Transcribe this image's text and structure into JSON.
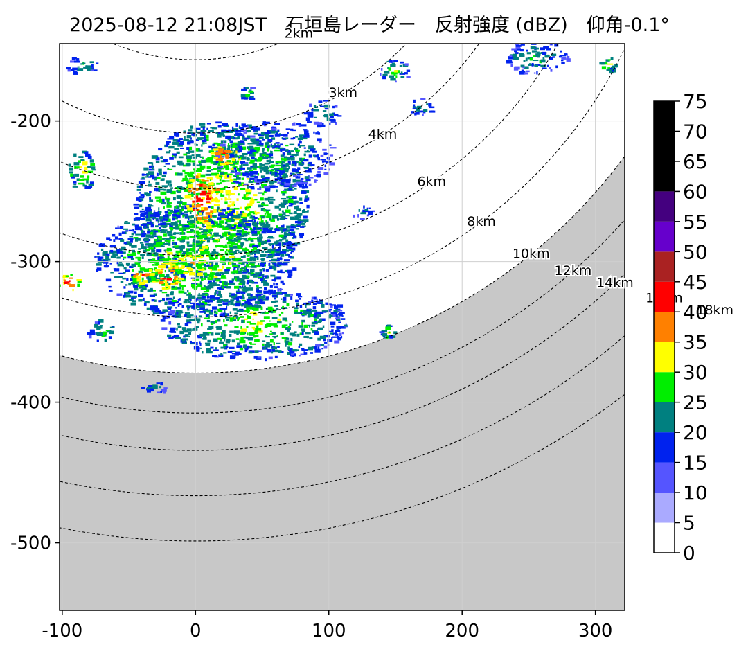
{
  "title": "2025-08-12 21:08JST　石垣島レーダー　反射強度 (dBZ)　仰角-0.1°",
  "chart_data": {
    "type": "heatmap",
    "title": "2025-08-12 21:08JST　石垣島レーダー　反射強度 (dBZ)　仰角-0.1°",
    "x_ticks": [
      -100,
      0,
      100,
      200,
      300
    ],
    "y_ticks": [
      -200,
      -300,
      -400,
      -500
    ],
    "xlim": [
      -102,
      322
    ],
    "ylim": [
      -145,
      -548
    ],
    "grid": true,
    "range_rings": [
      {
        "label": "2km",
        "radius": 165
      },
      {
        "label": "3km",
        "radius": 220
      },
      {
        "label": "4km",
        "radius": 262
      },
      {
        "label": "6km",
        "radius": 312
      },
      {
        "label": "8km",
        "radius": 358
      },
      {
        "label": "10km",
        "radius": 400
      },
      {
        "label": "12km",
        "radius": 430
      },
      {
        "label": "14km",
        "radius": 458
      },
      {
        "label": "16km",
        "radius": 492
      },
      {
        "label": "18km",
        "radius": 526
      }
    ],
    "shadow_region_start_radius": 400,
    "shadow_color": "#c8c8c8",
    "colorbar": {
      "ticks": [
        0,
        5,
        10,
        15,
        20,
        25,
        30,
        35,
        40,
        45,
        50,
        55,
        60,
        65,
        70,
        75
      ],
      "bins": [
        {
          "min": 0,
          "max": 5,
          "color": "#ffffff"
        },
        {
          "min": 5,
          "max": 10,
          "color": "#aaaaff"
        },
        {
          "min": 10,
          "max": 15,
          "color": "#5555ff"
        },
        {
          "min": 15,
          "max": 20,
          "color": "#0022ee"
        },
        {
          "min": 20,
          "max": 25,
          "color": "#008080"
        },
        {
          "min": 25,
          "max": 30,
          "color": "#00ee00"
        },
        {
          "min": 30,
          "max": 35,
          "color": "#ffff00"
        },
        {
          "min": 35,
          "max": 40,
          "color": "#ff8000"
        },
        {
          "min": 40,
          "max": 45,
          "color": "#ff0000"
        },
        {
          "min": 45,
          "max": 50,
          "color": "#aa2222"
        },
        {
          "min": 50,
          "max": 55,
          "color": "#6600cc"
        },
        {
          "min": 55,
          "max": 60,
          "color": "#44007f"
        },
        {
          "min": 60,
          "max": 75,
          "color": "#000000"
        }
      ]
    },
    "echo_cells": [
      {
        "x": 20,
        "y": -260,
        "rx": 65,
        "ry": 60,
        "dbz": 33
      },
      {
        "x": 0,
        "y": -300,
        "rx": 75,
        "ry": 40,
        "dbz": 32
      },
      {
        "x": 45,
        "y": -345,
        "rx": 70,
        "ry": 25,
        "dbz": 31
      },
      {
        "x": 60,
        "y": -225,
        "rx": 45,
        "ry": 25,
        "dbz": 28
      },
      {
        "x": 5,
        "y": -255,
        "rx": 12,
        "ry": 18,
        "dbz": 46
      },
      {
        "x": 22,
        "y": -225,
        "rx": 12,
        "ry": 10,
        "dbz": 42
      },
      {
        "x": -20,
        "y": -310,
        "rx": 12,
        "ry": 10,
        "dbz": 43
      },
      {
        "x": -40,
        "y": -310,
        "rx": 8,
        "ry": 6,
        "dbz": 41
      },
      {
        "x": -85,
        "y": -235,
        "rx": 10,
        "ry": 14,
        "dbz": 34
      },
      {
        "x": -95,
        "y": -315,
        "rx": 8,
        "ry": 6,
        "dbz": 42
      },
      {
        "x": 95,
        "y": -195,
        "rx": 14,
        "ry": 10,
        "dbz": 27
      },
      {
        "x": 170,
        "y": -190,
        "rx": 10,
        "ry": 6,
        "dbz": 28
      },
      {
        "x": 255,
        "y": -155,
        "rx": 25,
        "ry": 12,
        "dbz": 27
      },
      {
        "x": 150,
        "y": -165,
        "rx": 12,
        "ry": 8,
        "dbz": 30
      },
      {
        "x": -70,
        "y": -350,
        "rx": 10,
        "ry": 8,
        "dbz": 30
      },
      {
        "x": 145,
        "y": -350,
        "rx": 6,
        "ry": 5,
        "dbz": 32
      },
      {
        "x": 105,
        "y": -335,
        "rx": 8,
        "ry": 6,
        "dbz": 24
      },
      {
        "x": -30,
        "y": -390,
        "rx": 10,
        "ry": 4,
        "dbz": 26
      },
      {
        "x": -85,
        "y": -160,
        "rx": 12,
        "ry": 8,
        "dbz": 27
      },
      {
        "x": 310,
        "y": -160,
        "rx": 6,
        "ry": 6,
        "dbz": 34
      },
      {
        "x": 125,
        "y": -265,
        "rx": 10,
        "ry": 6,
        "dbz": 24
      },
      {
        "x": 40,
        "y": -180,
        "rx": 6,
        "ry": 5,
        "dbz": 30
      }
    ]
  }
}
